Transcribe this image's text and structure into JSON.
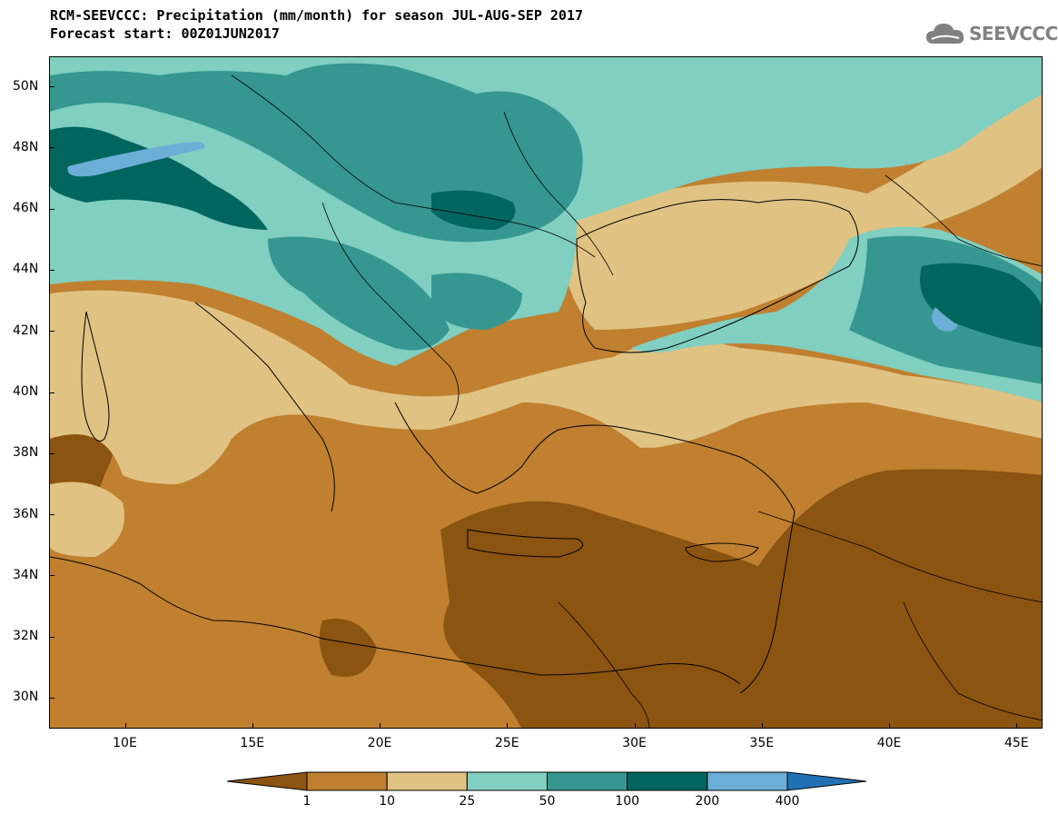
{
  "title": {
    "line1": "RCM-SEEVCCC: Precipitation (mm/month) for season JUL-AUG-SEP 2017",
    "line2": "Forecast start: 00Z01JUN2017"
  },
  "logo": {
    "text": "SEEVCCC",
    "icon": "cloud-icon",
    "color": "#808080"
  },
  "map": {
    "lon_range": [
      7,
      46
    ],
    "lat_range": [
      29,
      51
    ],
    "lon_ticks": [
      {
        "value": 10,
        "label": "10E"
      },
      {
        "value": 15,
        "label": "15E"
      },
      {
        "value": 20,
        "label": "20E"
      },
      {
        "value": 25,
        "label": "25E"
      },
      {
        "value": 30,
        "label": "30E"
      },
      {
        "value": 35,
        "label": "35E"
      },
      {
        "value": 40,
        "label": "40E"
      },
      {
        "value": 45,
        "label": "45E"
      }
    ],
    "lat_ticks": [
      {
        "value": 30,
        "label": "30N"
      },
      {
        "value": 32,
        "label": "32N"
      },
      {
        "value": 34,
        "label": "34N"
      },
      {
        "value": 36,
        "label": "36N"
      },
      {
        "value": 38,
        "label": "38N"
      },
      {
        "value": 40,
        "label": "40N"
      },
      {
        "value": 42,
        "label": "42N"
      },
      {
        "value": 44,
        "label": "44N"
      },
      {
        "value": 46,
        "label": "46N"
      },
      {
        "value": 48,
        "label": "48N"
      },
      {
        "value": 50,
        "label": "50N"
      }
    ]
  },
  "colorbar": {
    "colors": [
      "#8b5410",
      "#c0802f",
      "#e0c283",
      "#80cfc1",
      "#35978f",
      "#01665e",
      "#6baed6",
      "#2171b5"
    ],
    "labels": [
      "1",
      "10",
      "25",
      "50",
      "100",
      "200",
      "400"
    ]
  }
}
